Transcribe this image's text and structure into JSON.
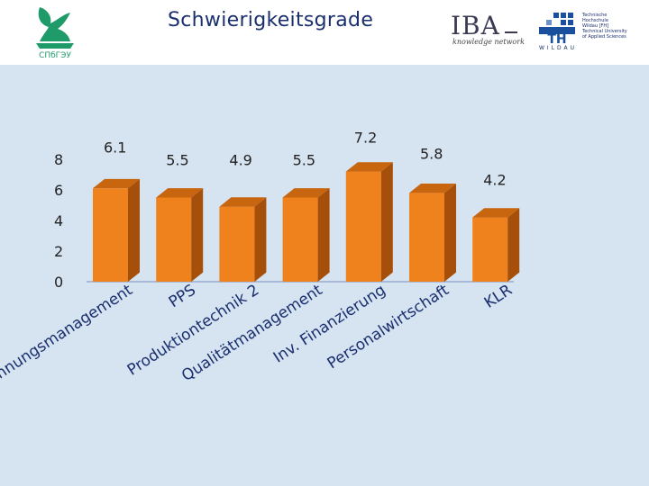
{
  "header": {
    "title": "Schwierigkeitsgrade",
    "logo_left_text": "СПбГЭУ",
    "logo_iba": "IBA",
    "logo_iba_sub": "knowledge network",
    "logo_th_lines": [
      "Technische",
      "Hochschule",
      "Wildau [FH]",
      "Technical University",
      "of Applied Sciences"
    ],
    "logo_th_wildau": "WILDAU"
  },
  "colors": {
    "bar_front": "#f0821e",
    "bar_side": "#a54f0a",
    "bar_top": "#c8650f",
    "background": "#d6e3f1",
    "title": "#1a2f6e",
    "axis": "#7f8fc0"
  },
  "chart_data": {
    "type": "bar",
    "title": "Schwierigkeitsgrade",
    "categories": [
      "Rechnungsmanagement",
      "PPS",
      "Produktiontechnik 2",
      "Qualitätmanagement",
      "Inv. Finanzierung",
      "Personalwirtschaft",
      "KLR"
    ],
    "values": [
      6.1,
      5.5,
      4.9,
      5.5,
      7.2,
      5.8,
      4.2
    ],
    "value_labels": [
      "6.1",
      "5.5",
      "4.9",
      "5.5",
      "7.2",
      "5.8",
      "4.2"
    ],
    "yticks": [
      "0",
      "2",
      "4",
      "6",
      "8"
    ],
    "ylim": [
      0,
      8
    ],
    "xlabel": "",
    "ylabel": "",
    "grid": false,
    "legend": "none"
  }
}
